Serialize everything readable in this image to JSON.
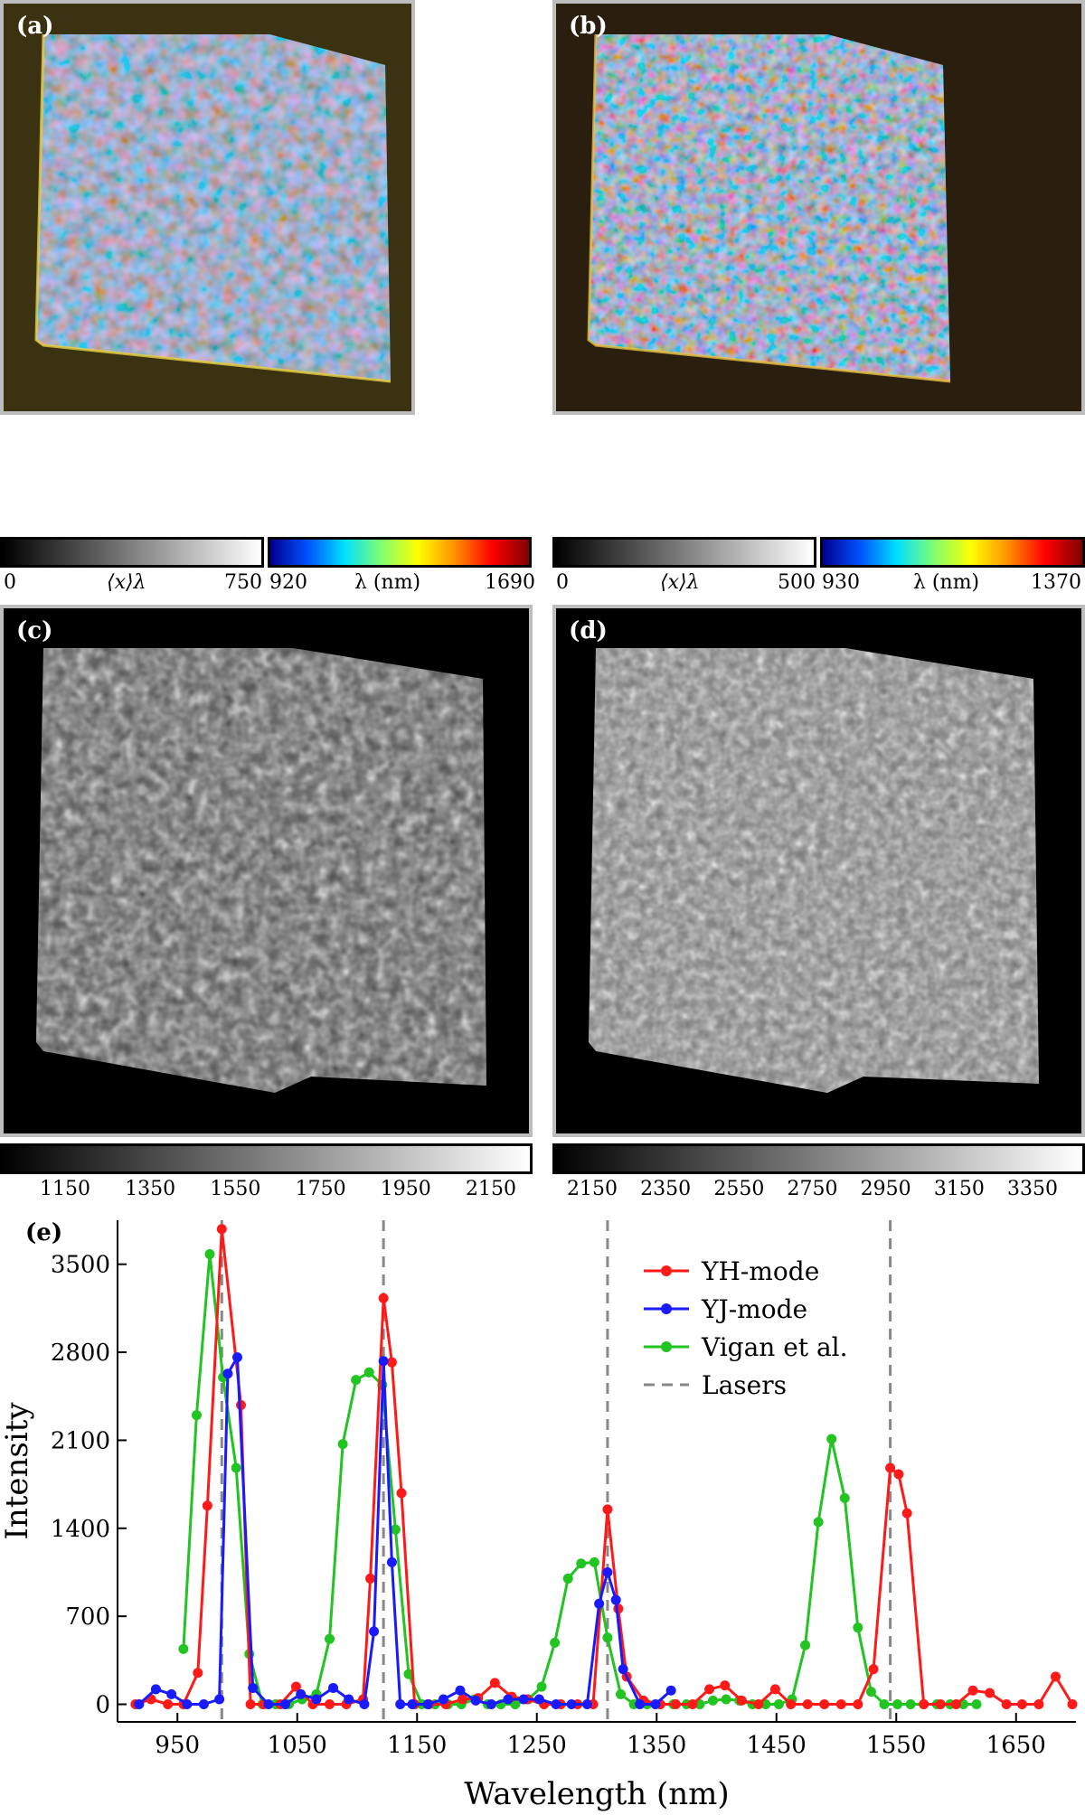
{
  "panels": {
    "a": {
      "label": "(a)"
    },
    "b": {
      "label": "(b)"
    },
    "c": {
      "label": "(c)"
    },
    "d": {
      "label": "(d)"
    },
    "e": {
      "label": "(e)"
    }
  },
  "colorbars": {
    "a_gray": {
      "min": "0",
      "label": "⟨x⟩λ",
      "max": "750"
    },
    "a_spec": {
      "min": "920",
      "label": "λ (nm)",
      "max": "1690"
    },
    "b_gray": {
      "min": "0",
      "label": "⟨x⟩λ",
      "max": "500"
    },
    "b_spec": {
      "min": "930",
      "label": "λ (nm)",
      "max": "1370"
    },
    "c_ticks": [
      "1150",
      "1350",
      "1550",
      "1750",
      "1950",
      "2150"
    ],
    "d_ticks": [
      "2150",
      "2350",
      "2550",
      "2750",
      "2950",
      "3150",
      "3350"
    ]
  },
  "colors": {
    "yh": "#ff1a1a",
    "yj": "#1a1aff",
    "vigan": "#22c422",
    "lasers": "#888888"
  },
  "chart_data": {
    "type": "line",
    "title": "",
    "xlabel": "Wavelength (nm)",
    "ylabel": "Intensity",
    "xlim": [
      900,
      1700
    ],
    "ylim": [
      -140,
      3850
    ],
    "xticks": [
      950,
      1050,
      1150,
      1250,
      1350,
      1450,
      1550,
      1650
    ],
    "yticks": [
      0,
      700,
      1400,
      2100,
      2800,
      3500
    ],
    "legend_position": "top-right",
    "lasers": {
      "name": "Lasers",
      "x": [
        987,
        1122,
        1309,
        1545
      ]
    },
    "series": [
      {
        "name": "YH-mode",
        "x": [
          915,
          928,
          942,
          955,
          967,
          975,
          987,
          1003,
          1011,
          1022,
          1036,
          1049,
          1063,
          1077,
          1091,
          1105,
          1111,
          1122,
          1129,
          1137,
          1148,
          1160,
          1174,
          1188,
          1201,
          1215,
          1229,
          1242,
          1256,
          1270,
          1284,
          1297,
          1309,
          1318,
          1325,
          1339,
          1353,
          1366,
          1380,
          1394,
          1407,
          1421,
          1435,
          1449,
          1462,
          1476,
          1490,
          1504,
          1518,
          1531,
          1545,
          1552,
          1559,
          1573,
          1587,
          1600,
          1614,
          1628,
          1642,
          1655,
          1669,
          1683,
          1697
        ],
        "values": [
          0,
          40,
          0,
          0,
          250,
          1580,
          3780,
          2380,
          0,
          0,
          0,
          140,
          0,
          0,
          0,
          40,
          1000,
          3230,
          2720,
          1680,
          0,
          0,
          0,
          40,
          50,
          170,
          60,
          40,
          0,
          0,
          0,
          0,
          1550,
          760,
          220,
          30,
          0,
          0,
          0,
          120,
          150,
          30,
          0,
          120,
          0,
          0,
          0,
          0,
          0,
          280,
          1880,
          1830,
          1520,
          0,
          0,
          0,
          110,
          90,
          0,
          0,
          0,
          220,
          0
        ]
      },
      {
        "name": "YJ-mode",
        "x": [
          918,
          932,
          945,
          958,
          972,
          985,
          992,
          1000,
          1013,
          1026,
          1040,
          1053,
          1066,
          1080,
          1093,
          1106,
          1114,
          1122,
          1129,
          1136,
          1146,
          1159,
          1172,
          1186,
          1199,
          1212,
          1226,
          1239,
          1252,
          1266,
          1279,
          1292,
          1302,
          1309,
          1316,
          1322,
          1336,
          1349,
          1362
        ],
        "values": [
          0,
          120,
          80,
          0,
          0,
          40,
          2630,
          2760,
          130,
          0,
          0,
          80,
          40,
          130,
          40,
          0,
          580,
          2730,
          1130,
          0,
          0,
          0,
          40,
          110,
          30,
          0,
          40,
          40,
          40,
          0,
          0,
          0,
          800,
          1050,
          830,
          280,
          0,
          0,
          110
        ]
      },
      {
        "name": "Vigan et al.",
        "x": [
          955,
          966,
          977,
          988,
          999,
          1010,
          1021,
          1032,
          1043,
          1054,
          1066,
          1077,
          1088,
          1099,
          1110,
          1121,
          1132,
          1143,
          1154,
          1165,
          1176,
          1187,
          1198,
          1209,
          1220,
          1232,
          1243,
          1254,
          1265,
          1276,
          1287,
          1298,
          1309,
          1320,
          1331,
          1342,
          1353,
          1364,
          1375,
          1386,
          1397,
          1408,
          1419,
          1430,
          1441,
          1452,
          1463,
          1474,
          1485,
          1496,
          1507,
          1518,
          1529,
          1540,
          1551,
          1562,
          1573,
          1584,
          1595,
          1606,
          1617
        ],
        "values": [
          440,
          2300,
          3580,
          2600,
          1880,
          400,
          0,
          0,
          0,
          40,
          80,
          520,
          2070,
          2580,
          2640,
          2540,
          1390,
          240,
          0,
          0,
          0,
          0,
          40,
          0,
          0,
          0,
          40,
          140,
          490,
          1000,
          1120,
          1130,
          530,
          80,
          0,
          0,
          0,
          0,
          0,
          0,
          30,
          40,
          30,
          0,
          0,
          0,
          40,
          470,
          1450,
          2110,
          1640,
          610,
          100,
          0,
          0,
          0,
          0,
          0,
          0,
          0,
          0
        ]
      }
    ]
  }
}
